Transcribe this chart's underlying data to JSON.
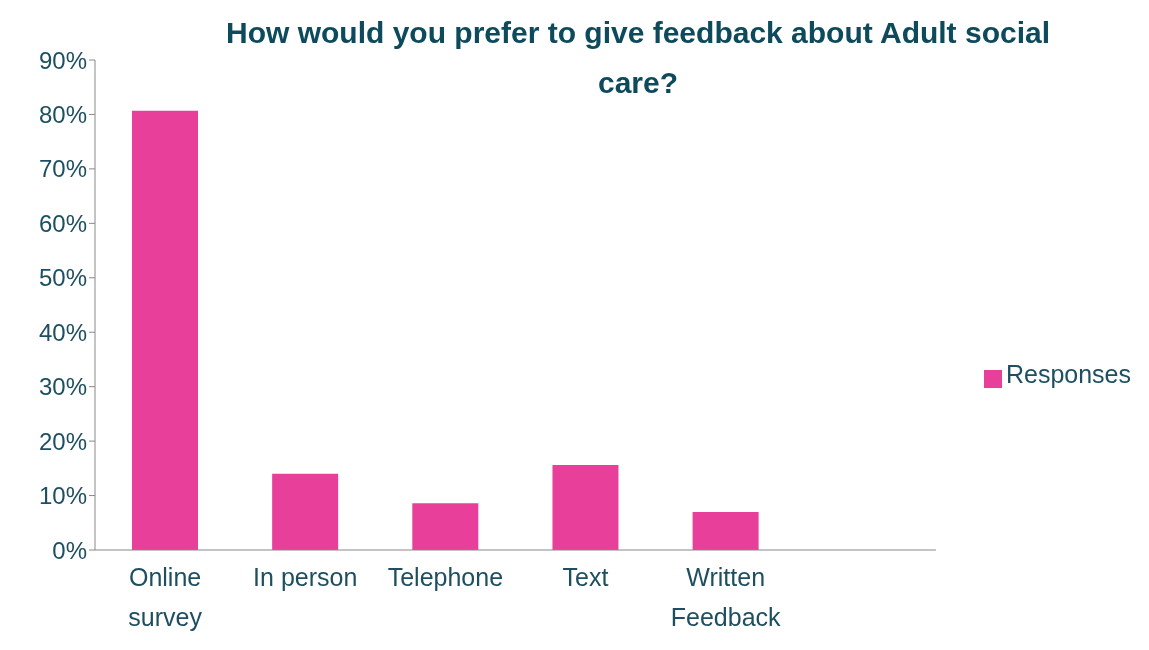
{
  "chart_data": {
    "type": "bar",
    "title": "How would you prefer to give feedback about Adult social care?",
    "categories": [
      "Online survey",
      "In person",
      "Telephone",
      "Text",
      "Written Feedback",
      null
    ],
    "series": [
      {
        "name": "Responses",
        "color": "#e8409a",
        "values": [
          80.7,
          14.0,
          8.6,
          15.6,
          7.0,
          null
        ]
      }
    ],
    "ylim": [
      0,
      90
    ],
    "yticks": [
      {
        "value": 0,
        "label": "0%"
      },
      {
        "value": 10,
        "label": "10%"
      },
      {
        "value": 20,
        "label": "20%"
      },
      {
        "value": 30,
        "label": "30%"
      },
      {
        "value": 40,
        "label": "40%"
      },
      {
        "value": 50,
        "label": "50%"
      },
      {
        "value": 60,
        "label": "60%"
      },
      {
        "value": 70,
        "label": "70%"
      },
      {
        "value": 80,
        "label": "80%"
      },
      {
        "value": 90,
        "label": "90%"
      }
    ],
    "grid": false,
    "legend": "right"
  }
}
